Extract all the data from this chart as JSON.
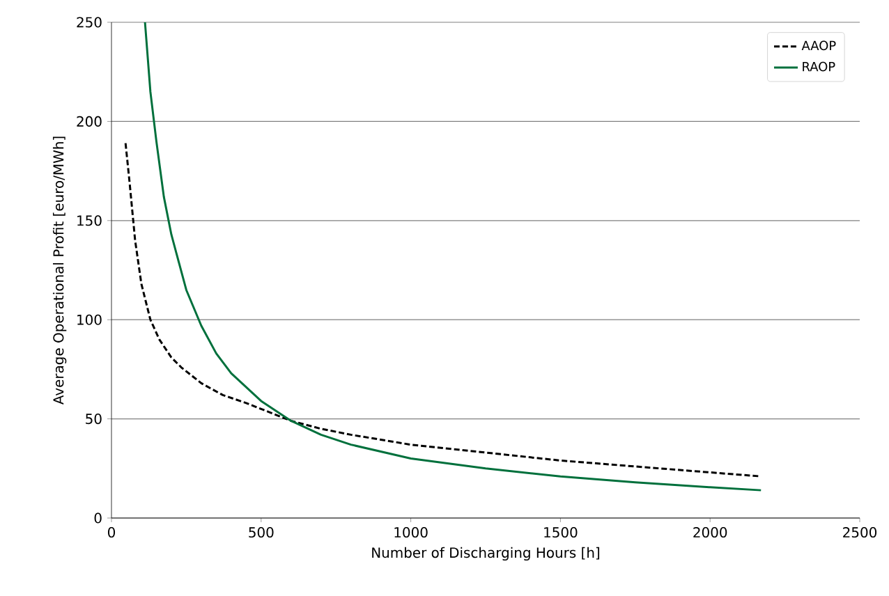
{
  "chart_data": {
    "type": "line",
    "xlabel": "Number of Discharging Hours [h]",
    "ylabel": "Average Operational Profit [euro/MWh]",
    "xlim": [
      0,
      2500
    ],
    "ylim": [
      0,
      250
    ],
    "xticks": [
      0,
      500,
      1000,
      1500,
      2000,
      2500
    ],
    "yticks": [
      0,
      50,
      100,
      150,
      200,
      250
    ],
    "grid": "y",
    "legend": "top right",
    "marker": "none",
    "series": [
      {
        "name": "AAOP",
        "color": "#000000",
        "line_style": "dashed",
        "x": [
          47,
          60,
          79,
          100,
          130,
          160,
          200,
          233,
          300,
          372,
          450,
          500,
          600,
          700,
          800,
          1000,
          1250,
          1500,
          1750,
          2000,
          2170
        ],
        "values": [
          189,
          170,
          140,
          118,
          100,
          90,
          81,
          76,
          68,
          62,
          58,
          55,
          49,
          45,
          42,
          37,
          33,
          29,
          26,
          23,
          21
        ]
      },
      {
        "name": "RAOP",
        "color": "#00703c",
        "line_style": "solid",
        "x": [
          112,
          130,
          150,
          175,
          200,
          250,
          300,
          350,
          400,
          500,
          600,
          700,
          800,
          1000,
          1250,
          1500,
          1750,
          2000,
          2170
        ],
        "values": [
          250,
          215,
          190,
          162,
          143,
          115,
          97,
          83,
          73,
          59,
          49,
          42,
          37,
          30,
          25,
          21,
          18,
          15.5,
          14
        ]
      }
    ]
  }
}
